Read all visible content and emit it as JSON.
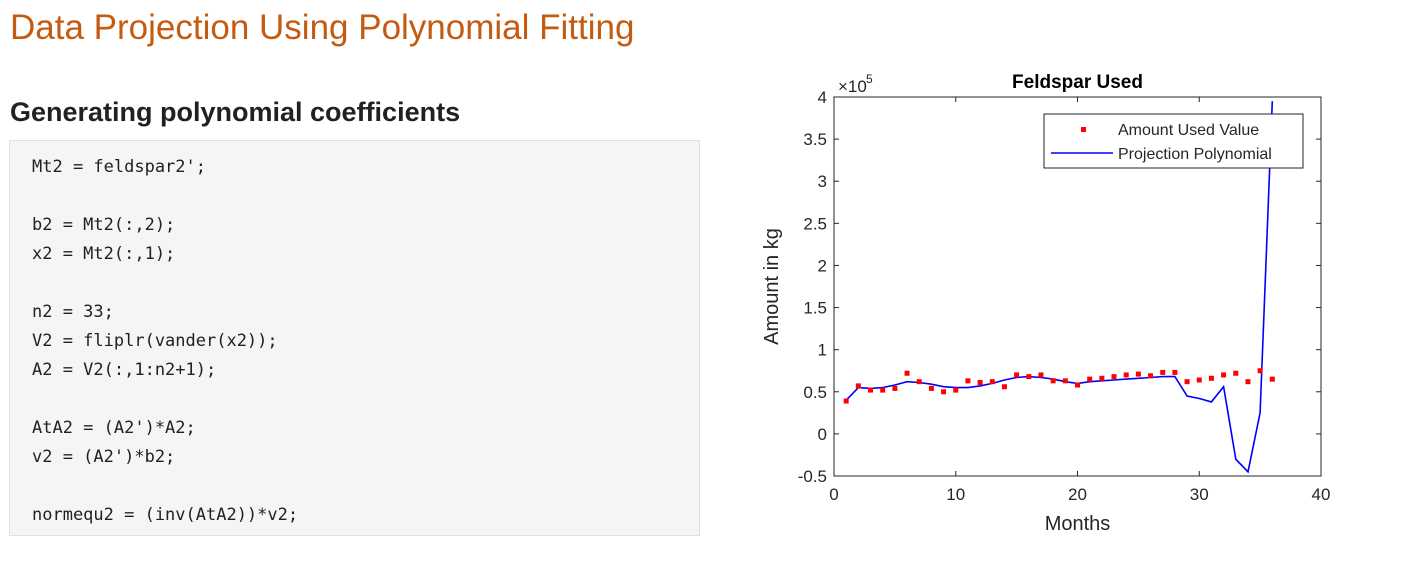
{
  "page": {
    "title": "Data Projection Using Polynomial Fitting",
    "section_heading": "Generating polynomial coefficients"
  },
  "code": {
    "lines": [
      "Mt2 = feldspar2';",
      "",
      "b2 = Mt2(:,2);",
      "x2 = Mt2(:,1);",
      "",
      "n2 = 33;",
      "V2 = fliplr(vander(x2));",
      "A2 = V2(:,1:n2+1);",
      "",
      "AtA2 = (A2')*A2;",
      "v2 = (A2')*b2;",
      "",
      "normequ2 = (inv(AtA2))*v2;"
    ]
  },
  "chart_data": {
    "type": "line",
    "title": "Feldspar Used",
    "xlabel": "Months",
    "ylabel": "Amount in kg",
    "exponent_label": "×10",
    "exponent_power": "5",
    "xlim": [
      0,
      40
    ],
    "ylim": [
      -0.5,
      4
    ],
    "xticks": [
      0,
      10,
      20,
      30,
      40
    ],
    "xtick_labels": [
      "0",
      "10",
      "20",
      "30",
      "40"
    ],
    "yticks": [
      -0.5,
      0,
      0.5,
      1,
      1.5,
      2,
      2.5,
      3,
      3.5,
      4
    ],
    "ytick_labels": [
      "-0.5",
      "0",
      "0.5",
      "1",
      "1.5",
      "2",
      "2.5",
      "3",
      "3.5",
      "4"
    ],
    "legend_position": "top-right",
    "series": [
      {
        "name": "Amount Used Value",
        "style": "markers",
        "color": "#ff0000",
        "x": [
          1,
          2,
          3,
          4,
          5,
          6,
          7,
          8,
          9,
          10,
          11,
          12,
          13,
          14,
          15,
          16,
          17,
          18,
          19,
          20,
          21,
          22,
          23,
          24,
          25,
          26,
          27,
          28,
          29,
          30,
          31,
          32,
          33,
          34,
          35,
          36
        ],
        "y": [
          0.39,
          0.57,
          0.52,
          0.52,
          0.54,
          0.72,
          0.62,
          0.54,
          0.5,
          0.52,
          0.63,
          0.61,
          0.62,
          0.56,
          0.7,
          0.68,
          0.7,
          0.63,
          0.63,
          0.58,
          0.65,
          0.66,
          0.68,
          0.7,
          0.71,
          0.69,
          0.73,
          0.73,
          0.62,
          0.64,
          0.66,
          0.7,
          0.72,
          0.62,
          0.75,
          0.65
        ]
      },
      {
        "name": "Projection Polynomial",
        "style": "line",
        "color": "#0000ff",
        "x": [
          1,
          2,
          3,
          4,
          5,
          6,
          7,
          8,
          9,
          10,
          11,
          12,
          13,
          14,
          15,
          16,
          17,
          18,
          19,
          20,
          21,
          22,
          23,
          24,
          25,
          26,
          27,
          28,
          29,
          30,
          31,
          32,
          33,
          34,
          35,
          36
        ],
        "y": [
          0.4,
          0.55,
          0.54,
          0.55,
          0.58,
          0.62,
          0.61,
          0.59,
          0.56,
          0.55,
          0.55,
          0.57,
          0.6,
          0.64,
          0.67,
          0.68,
          0.67,
          0.65,
          0.62,
          0.6,
          0.62,
          0.63,
          0.64,
          0.65,
          0.66,
          0.67,
          0.68,
          0.68,
          0.45,
          0.42,
          0.38,
          0.56,
          -0.3,
          -0.45,
          0.25,
          3.95
        ]
      }
    ]
  }
}
